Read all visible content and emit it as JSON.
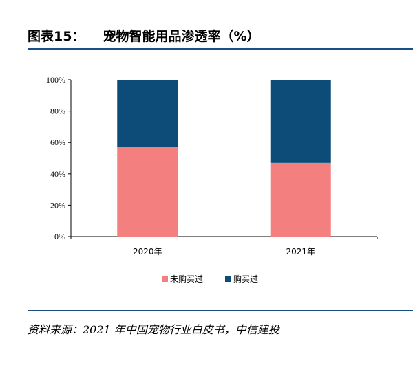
{
  "header": {
    "figure_number": "图表15：",
    "title": "宠物智能用品渗透率（%）"
  },
  "source": "资料来源：2021 年中国宠物行业白皮书，中信建投",
  "colors": {
    "not_purchased": "#f47f7f",
    "purchased": "#0d4b78",
    "rule": "#1a4f86"
  },
  "chart_data": {
    "type": "bar",
    "stacked": true,
    "categories": [
      "2020年",
      "2021年"
    ],
    "series": [
      {
        "name": "未购买过",
        "values": [
          57,
          47
        ]
      },
      {
        "name": "购买过",
        "values": [
          43,
          53
        ]
      }
    ],
    "yticks": [
      "0%",
      "20%",
      "40%",
      "60%",
      "80%",
      "100%"
    ],
    "ylim": [
      0,
      100
    ],
    "legend_position": "bottom"
  }
}
